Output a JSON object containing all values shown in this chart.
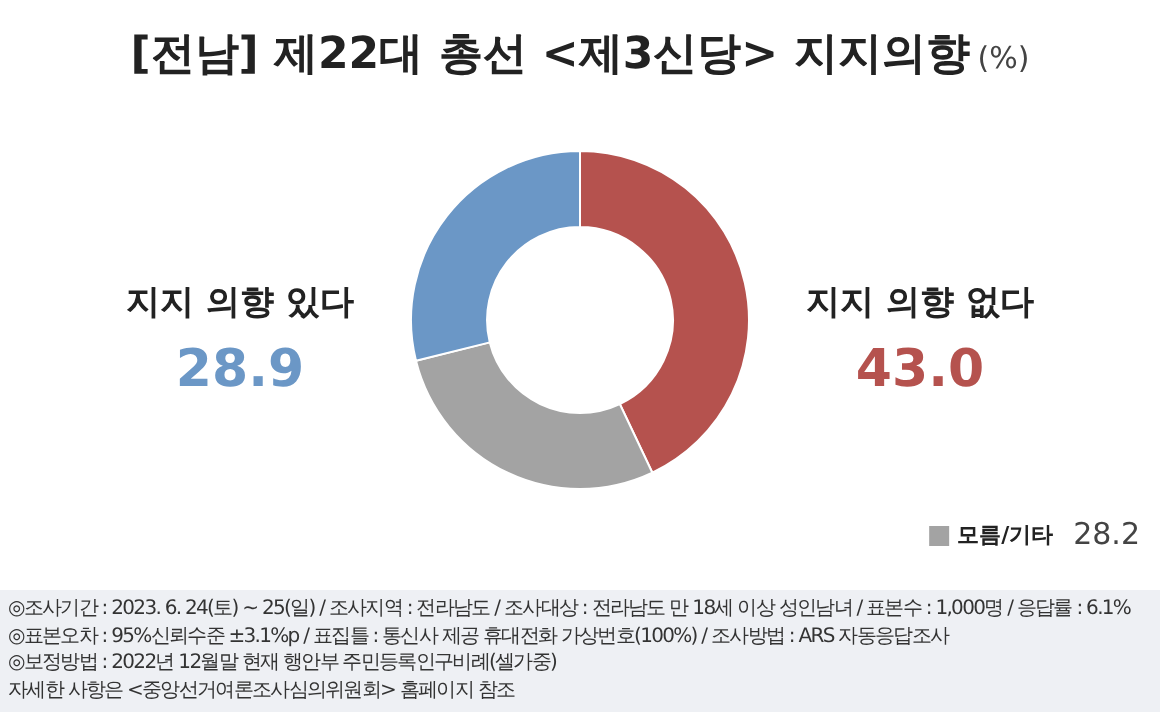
{
  "chart_data": {
    "type": "donut",
    "title": "[전남] 제22대 총선 <제3신당> 지지의향",
    "subtitle": "(%)",
    "categories": [
      "지지 의향 없다",
      "모름/기타",
      "지지 의향 있다"
    ],
    "values": [
      43.0,
      28.2,
      28.9
    ],
    "colors": [
      "#b5524e",
      "#a3a3a3",
      "#6b97c6"
    ],
    "value_labels": [
      "43.0",
      "28.2",
      "28.9"
    ],
    "legend": "bottom right",
    "annotations": [
      "◎조사기간 : 2023. 6. 24(토) ~ 25(일) / 조사지역 : 전라남도 / 조사대상 : 전라남도 만 18세 이상 성인남녀 / 표본수 : 1,000명 / 응답률 : 6.1%",
      "◎표본오차 : 95%신뢰수준 ±3.1%p  / 표집틀 : 통신사 제공 휴대전화 가상번호(100%) / 조사방법 : ARS 자동응답조사",
      "◎보정방법 : 2022년 12월말 현재 행안부 주민등록인구비례(셀가중)",
      "자세한 사항은 <중앙선거여론조사심의위원회> 홈페이지 참조"
    ]
  }
}
